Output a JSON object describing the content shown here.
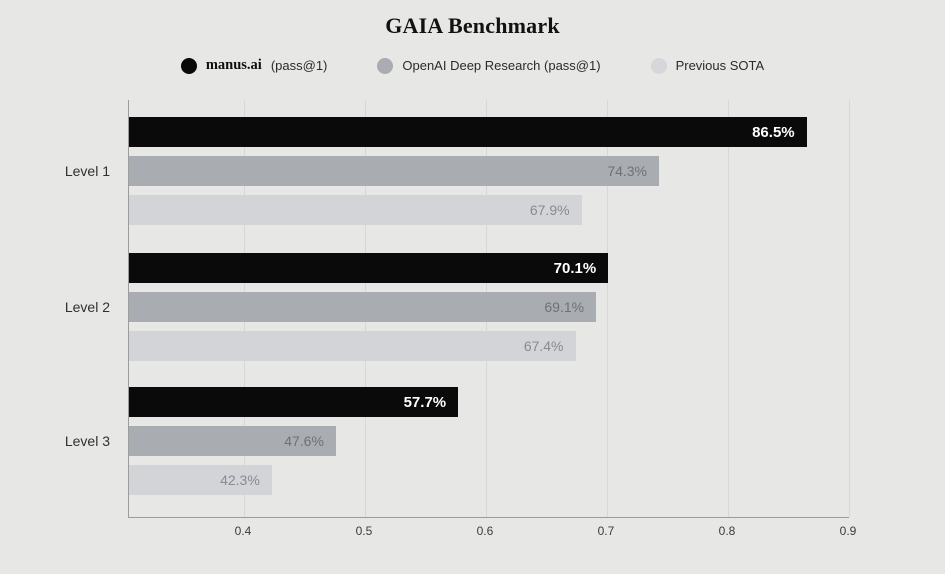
{
  "title": "GAIA Benchmark",
  "legend": {
    "items": [
      {
        "serif_label": "manus.ai",
        "label": "(pass@1)",
        "dot_color": "#0a0a0a"
      },
      {
        "serif_label": "",
        "label": "OpenAI Deep Research (pass@1)",
        "dot_color": "#a9acb0"
      },
      {
        "serif_label": "",
        "label": "Previous SOTA",
        "dot_color": "#d5d7da"
      }
    ]
  },
  "chart_data": {
    "type": "bar",
    "orientation": "horizontal",
    "title": "GAIA Benchmark",
    "categories": [
      "Level 1",
      "Level 2",
      "Level 3"
    ],
    "series": [
      {
        "name": "manus.ai (pass@1)",
        "color": "#0a0a0a",
        "label_color": "#ffffff",
        "label_bold": true,
        "values": [
          0.865,
          0.701,
          0.577
        ],
        "labels": [
          "86.5%",
          "70.1%",
          "57.7%"
        ]
      },
      {
        "name": "OpenAI Deep Research (pass@1)",
        "color": "#a9acb0",
        "label_color": "#6e7176",
        "label_bold": false,
        "values": [
          0.743,
          0.691,
          0.476
        ],
        "labels": [
          "74.3%",
          "69.1%",
          "47.6%"
        ]
      },
      {
        "name": "Previous SOTA",
        "color": "#d2d4d8",
        "label_color": "#878a8f",
        "label_bold": false,
        "values": [
          0.679,
          0.674,
          0.423
        ],
        "labels": [
          "67.9%",
          "67.4%",
          "42.3%"
        ]
      }
    ],
    "x_ticks": [
      0.4,
      0.5,
      0.6,
      0.7,
      0.8,
      0.9
    ],
    "x_tick_labels": [
      "0.4",
      "0.5",
      "0.6",
      "0.7",
      "0.8",
      "0.9"
    ],
    "xlim": [
      0.305,
      0.9
    ],
    "xlabel": "",
    "ylabel": "",
    "grid": true,
    "legend_position": "top",
    "background_color": "#e7e7e5",
    "axis_color": "#9c9c9a",
    "gridline_color": "#d7d7d5"
  }
}
